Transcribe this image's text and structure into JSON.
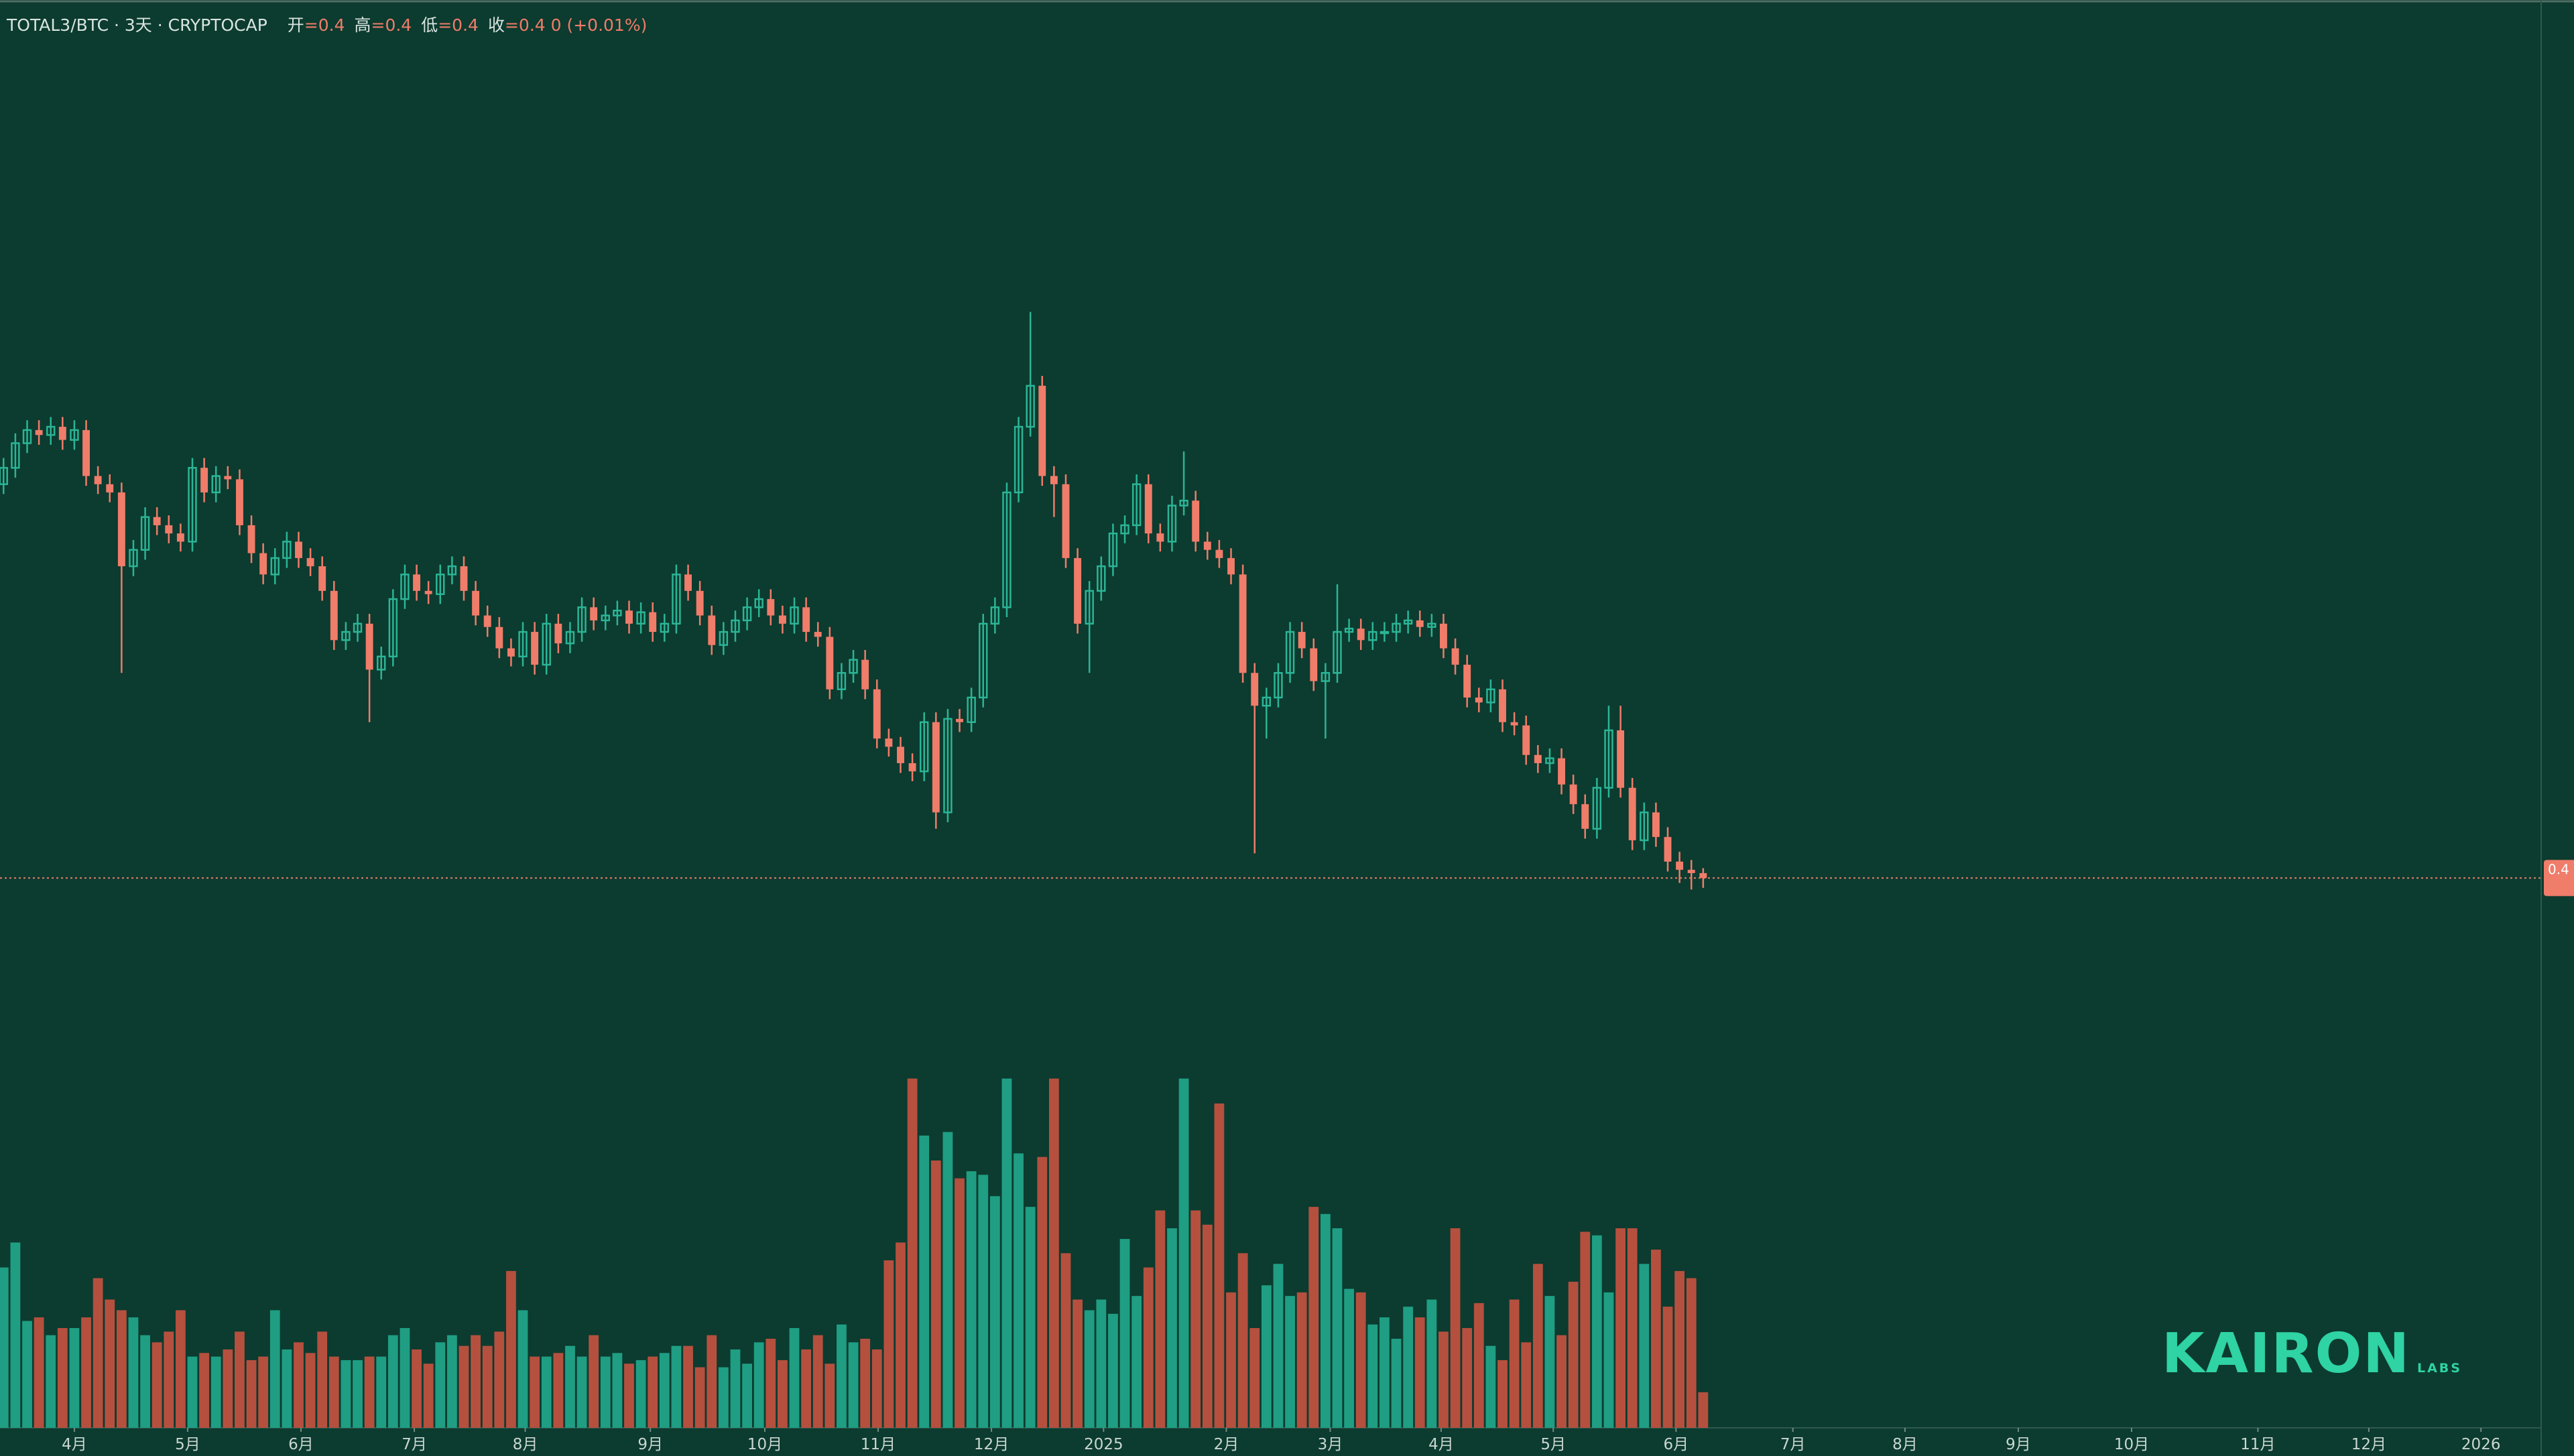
{
  "header": {
    "symbol": "TOTAL3/BTC · 3天 · CRYPTOCAP",
    "ohlc": [
      {
        "label": "开",
        "value": "=0.4"
      },
      {
        "label": "高",
        "value": "=0.4"
      },
      {
        "label": "低",
        "value": "=0.4"
      },
      {
        "label": "收",
        "value": "=0.4 0 (+0.01%)"
      }
    ]
  },
  "watermark": {
    "name": "KAIRON",
    "sub": "LABS"
  },
  "chart_data": {
    "type": "candlestick",
    "open": [
      0.52,
      0.525,
      0.5325,
      0.5365,
      0.535,
      0.5375,
      0.5335,
      0.5365,
      0.5225,
      0.52,
      0.5175,
      0.495,
      0.5,
      0.51,
      0.5075,
      0.505,
      0.5025,
      0.525,
      0.5175,
      0.5225,
      0.5215,
      0.5075,
      0.499,
      0.4925,
      0.4975,
      0.5025,
      0.4975,
      0.495,
      0.4875,
      0.4725,
      0.475,
      0.4775,
      0.4635,
      0.4675,
      0.485,
      0.4925,
      0.4875,
      0.4865,
      0.4925,
      0.495,
      0.4875,
      0.48,
      0.4765,
      0.47,
      0.4675,
      0.475,
      0.465,
      0.4775,
      0.4715,
      0.475,
      0.4825,
      0.4785,
      0.48,
      0.4815,
      0.4775,
      0.481,
      0.475,
      0.4775,
      0.4925,
      0.4875,
      0.48,
      0.471,
      0.475,
      0.4785,
      0.4825,
      0.485,
      0.48,
      0.4775,
      0.4825,
      0.475,
      0.4735,
      0.4575,
      0.4625,
      0.4665,
      0.4575,
      0.4425,
      0.44,
      0.435,
      0.4325,
      0.4475,
      0.42,
      0.4485,
      0.4475,
      0.455,
      0.4775,
      0.4825,
      0.5175,
      0.5375,
      0.55,
      0.5225,
      0.52,
      0.4975,
      0.4775,
      0.4875,
      0.495,
      0.505,
      0.5075,
      0.52,
      0.505,
      0.5025,
      0.5135,
      0.515,
      0.5025,
      0.5,
      0.4975,
      0.4925,
      0.4625,
      0.4525,
      0.455,
      0.4625,
      0.475,
      0.47,
      0.46,
      0.4625,
      0.475,
      0.476,
      0.4725,
      0.475,
      0.475,
      0.4775,
      0.4785,
      0.4765,
      0.4775,
      0.47,
      0.465,
      0.455,
      0.4535,
      0.4575,
      0.4475,
      0.4465,
      0.4375,
      0.435,
      0.4365,
      0.4285,
      0.4225,
      0.415,
      0.4275,
      0.445,
      0.4275,
      0.4115,
      0.42,
      0.4125,
      0.405,
      0.4025,
      0.4015
    ],
    "high": [
      0.528,
      0.5355,
      0.5395,
      0.5395,
      0.5405,
      0.5405,
      0.5395,
      0.5395,
      0.5255,
      0.523,
      0.5205,
      0.503,
      0.513,
      0.513,
      0.5105,
      0.508,
      0.528,
      0.528,
      0.5255,
      0.5255,
      0.5245,
      0.5105,
      0.502,
      0.5005,
      0.5055,
      0.5055,
      0.5005,
      0.498,
      0.4905,
      0.478,
      0.4805,
      0.4805,
      0.4705,
      0.488,
      0.4955,
      0.4955,
      0.4905,
      0.4955,
      0.498,
      0.498,
      0.4905,
      0.483,
      0.4795,
      0.473,
      0.478,
      0.478,
      0.4805,
      0.4805,
      0.478,
      0.4855,
      0.4855,
      0.483,
      0.4845,
      0.4845,
      0.484,
      0.484,
      0.4805,
      0.4955,
      0.4955,
      0.4905,
      0.483,
      0.478,
      0.4815,
      0.4855,
      0.488,
      0.488,
      0.483,
      0.4855,
      0.4855,
      0.478,
      0.4765,
      0.4655,
      0.4695,
      0.4695,
      0.4605,
      0.4455,
      0.443,
      0.438,
      0.4505,
      0.4505,
      0.4515,
      0.4515,
      0.458,
      0.4805,
      0.4855,
      0.5205,
      0.5405,
      0.5725,
      0.553,
      0.5255,
      0.523,
      0.5005,
      0.4905,
      0.498,
      0.508,
      0.5105,
      0.523,
      0.523,
      0.508,
      0.5165,
      0.53,
      0.518,
      0.5055,
      0.503,
      0.5005,
      0.4955,
      0.4655,
      0.458,
      0.4655,
      0.478,
      0.478,
      0.473,
      0.4655,
      0.4895,
      0.479,
      0.479,
      0.478,
      0.478,
      0.4805,
      0.4815,
      0.4815,
      0.4805,
      0.4805,
      0.473,
      0.468,
      0.458,
      0.4605,
      0.4605,
      0.4505,
      0.4495,
      0.4405,
      0.4395,
      0.4395,
      0.4315,
      0.4255,
      0.4305,
      0.4525,
      0.4525,
      0.4305,
      0.423,
      0.423,
      0.4155,
      0.408,
      0.4055,
      0.403
    ],
    "low": [
      0.517,
      0.522,
      0.5295,
      0.532,
      0.532,
      0.5305,
      0.5305,
      0.5195,
      0.517,
      0.5145,
      0.4625,
      0.492,
      0.497,
      0.5045,
      0.502,
      0.4995,
      0.4995,
      0.5145,
      0.5145,
      0.5185,
      0.5045,
      0.496,
      0.4895,
      0.4895,
      0.4945,
      0.4945,
      0.492,
      0.4845,
      0.4695,
      0.4695,
      0.472,
      0.4475,
      0.4605,
      0.4645,
      0.482,
      0.4845,
      0.4835,
      0.4835,
      0.4895,
      0.4845,
      0.477,
      0.4735,
      0.467,
      0.4645,
      0.4645,
      0.462,
      0.462,
      0.4685,
      0.4685,
      0.472,
      0.4755,
      0.4755,
      0.477,
      0.4745,
      0.4745,
      0.472,
      0.472,
      0.4745,
      0.4845,
      0.477,
      0.468,
      0.468,
      0.472,
      0.4755,
      0.4795,
      0.477,
      0.4745,
      0.4745,
      0.472,
      0.4705,
      0.4545,
      0.4545,
      0.4595,
      0.4545,
      0.4395,
      0.437,
      0.432,
      0.4295,
      0.4295,
      0.415,
      0.417,
      0.4445,
      0.4445,
      0.452,
      0.4745,
      0.4795,
      0.5145,
      0.5345,
      0.5195,
      0.51,
      0.4945,
      0.4745,
      0.4625,
      0.4845,
      0.492,
      0.502,
      0.5045,
      0.502,
      0.4995,
      0.4995,
      0.5105,
      0.4995,
      0.497,
      0.4945,
      0.4895,
      0.4595,
      0.4075,
      0.4425,
      0.452,
      0.4595,
      0.467,
      0.457,
      0.4425,
      0.4595,
      0.472,
      0.4695,
      0.4695,
      0.472,
      0.472,
      0.4745,
      0.4735,
      0.4735,
      0.467,
      0.462,
      0.452,
      0.4505,
      0.4505,
      0.4445,
      0.4435,
      0.4345,
      0.432,
      0.432,
      0.4255,
      0.4195,
      0.412,
      0.412,
      0.4245,
      0.4245,
      0.4085,
      0.4085,
      0.4095,
      0.402,
      0.3985,
      0.3965,
      0.397
    ],
    "close": [
      0.525,
      0.5325,
      0.5365,
      0.535,
      0.5375,
      0.5335,
      0.5365,
      0.5225,
      0.52,
      0.5175,
      0.495,
      0.5,
      0.51,
      0.5075,
      0.505,
      0.5025,
      0.525,
      0.5175,
      0.5225,
      0.5215,
      0.5075,
      0.499,
      0.4925,
      0.4975,
      0.5025,
      0.4975,
      0.495,
      0.4875,
      0.4725,
      0.475,
      0.4775,
      0.4635,
      0.4675,
      0.485,
      0.4925,
      0.4875,
      0.4865,
      0.4925,
      0.495,
      0.4875,
      0.48,
      0.4765,
      0.47,
      0.4675,
      0.475,
      0.465,
      0.4775,
      0.4715,
      0.475,
      0.4825,
      0.4785,
      0.48,
      0.4815,
      0.4775,
      0.481,
      0.475,
      0.4775,
      0.4925,
      0.4875,
      0.48,
      0.471,
      0.475,
      0.4785,
      0.4825,
      0.485,
      0.48,
      0.4775,
      0.4825,
      0.475,
      0.4735,
      0.4575,
      0.4625,
      0.4665,
      0.4575,
      0.4425,
      0.44,
      0.435,
      0.4325,
      0.4475,
      0.42,
      0.4485,
      0.4475,
      0.455,
      0.4775,
      0.4825,
      0.5175,
      0.5375,
      0.55,
      0.5225,
      0.52,
      0.4975,
      0.4775,
      0.4875,
      0.495,
      0.505,
      0.5075,
      0.52,
      0.505,
      0.5025,
      0.5135,
      0.515,
      0.5025,
      0.5,
      0.4975,
      0.4925,
      0.4625,
      0.4525,
      0.455,
      0.4625,
      0.475,
      0.47,
      0.46,
      0.4625,
      0.475,
      0.476,
      0.4725,
      0.475,
      0.475,
      0.4775,
      0.4785,
      0.4765,
      0.4775,
      0.47,
      0.465,
      0.455,
      0.4535,
      0.4575,
      0.4475,
      0.4465,
      0.4375,
      0.435,
      0.4365,
      0.4285,
      0.4225,
      0.415,
      0.4275,
      0.445,
      0.4275,
      0.4115,
      0.42,
      0.4125,
      0.405,
      0.4025,
      0.4015,
      0.4
    ],
    "volume": [
      45,
      52,
      30,
      31,
      26,
      28,
      28,
      31,
      42,
      36,
      33,
      31,
      26,
      24,
      27,
      33,
      20,
      21,
      20,
      22,
      27,
      19,
      20,
      33,
      22,
      24,
      21,
      27,
      20,
      19,
      19,
      20,
      20,
      26,
      28,
      22,
      18,
      24,
      26,
      23,
      26,
      23,
      27,
      44,
      33,
      20,
      20,
      21,
      23,
      20,
      26,
      20,
      21,
      18,
      19,
      20,
      21,
      23,
      23,
      17,
      26,
      17,
      22,
      18,
      24,
      25,
      19,
      28,
      22,
      26,
      18,
      29,
      24,
      25,
      22,
      47,
      52,
      98,
      82,
      75,
      83,
      70,
      72,
      71,
      65,
      98,
      77,
      62,
      76,
      98,
      49,
      36,
      33,
      36,
      32,
      53,
      37,
      45,
      61,
      56,
      98,
      61,
      57,
      91,
      38,
      49,
      28,
      40,
      46,
      37,
      38,
      62,
      60,
      56,
      39,
      38,
      29,
      31,
      25,
      34,
      31,
      36,
      27,
      56,
      28,
      35,
      23,
      19,
      36,
      24,
      46,
      37,
      26,
      41,
      55,
      54,
      38,
      56,
      56,
      46,
      50,
      34,
      44,
      42,
      10
    ],
    "xlim": [
      -0.3,
      215
    ],
    "xticks": [
      {
        "value": 6.0,
        "label": "4月"
      },
      {
        "value": 15.6,
        "label": "5月"
      },
      {
        "value": 25.2,
        "label": "6月"
      },
      {
        "value": 34.8,
        "label": "7月"
      },
      {
        "value": 44.2,
        "label": "8月"
      },
      {
        "value": 54.8,
        "label": "9月"
      },
      {
        "value": 64.5,
        "label": "10月"
      },
      {
        "value": 74.1,
        "label": "11月"
      },
      {
        "value": 83.7,
        "label": "12月"
      },
      {
        "value": 93.2,
        "label": "2025"
      },
      {
        "value": 103.6,
        "label": "2月"
      },
      {
        "value": 112.4,
        "label": "3月"
      },
      {
        "value": 121.8,
        "label": "4月"
      },
      {
        "value": 131.3,
        "label": "5月"
      },
      {
        "value": 141.7,
        "label": "6月"
      },
      {
        "value": 151.6,
        "label": "7月"
      },
      {
        "value": 161.1,
        "label": "8月"
      },
      {
        "value": 170.7,
        "label": "9月"
      },
      {
        "value": 180.3,
        "label": "10月"
      },
      {
        "value": 191.0,
        "label": "11月"
      },
      {
        "value": 200.4,
        "label": "12月"
      },
      {
        "value": 209.9,
        "label": "2026"
      }
    ],
    "ylim": [
      0.23,
      0.66
    ],
    "y2lim": [
      0,
      100
    ],
    "grid": false,
    "up_color": "#2bb596",
    "down_color": "#f07c6a",
    "volume_up_color": "#1f9e83",
    "volume_down_color": "#b5503f",
    "price_label": "0.4"
  }
}
